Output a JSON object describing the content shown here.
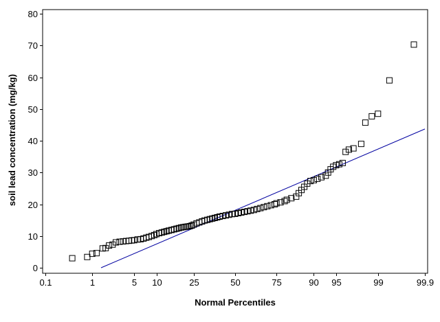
{
  "chart_data": {
    "type": "scatter",
    "xlabel": "Normal Percentiles",
    "ylabel": "soil lead concentration (mg/kg)",
    "x_scale": "normal-probability",
    "xlim": [
      0.1,
      99.9
    ],
    "ylim": [
      -1,
      81
    ],
    "x_ticks": [
      0.1,
      1,
      5,
      10,
      25,
      50,
      75,
      90,
      95,
      99,
      99.9
    ],
    "x_tick_labels": [
      "0.1",
      "1",
      "5",
      "10",
      "25",
      "50",
      "75",
      "90",
      "95",
      "99",
      "99.9"
    ],
    "y_ticks": [
      0,
      10,
      20,
      30,
      40,
      50,
      60,
      70,
      80
    ],
    "y_tick_labels": [
      "0",
      "10",
      "20",
      "30",
      "40",
      "50",
      "60",
      "70",
      "80"
    ],
    "grid": false,
    "legend": "none",
    "marker": "open-square",
    "marker_color": "#000000",
    "fit_line_color": "#0000a0",
    "fit_line": {
      "x": [
        1.45,
        99.9
      ],
      "y": [
        0,
        43.7
      ]
    },
    "series": [
      {
        "x": [
          0.4,
          0.8,
          1.0,
          1.2,
          1.55,
          1.75,
          2.0,
          2.3,
          2.6,
          3.0,
          3.4,
          3.8,
          4.2,
          4.6,
          5.0,
          5.6,
          6.2,
          6.8,
          7.4,
          8.0,
          8.7,
          9.4,
          10.0,
          10.8,
          11.6,
          12.4,
          13.2,
          14.0,
          15.0,
          16.0,
          17.0,
          18.0,
          19.0,
          20.0,
          21.0,
          22.0,
          23.0,
          24.0,
          25.0,
          26.5,
          28.0,
          29.5,
          31.0,
          32.5,
          34.0,
          35.5,
          37.0,
          38.5,
          40.0,
          42.0,
          44.0,
          46.0,
          48.0,
          50.0,
          52.0,
          54.0,
          56.0,
          58.0,
          60.0,
          62.0,
          64.0,
          66.0,
          68.0,
          70.0,
          72.0,
          74.0,
          75.0,
          77.0,
          79.0,
          80.0,
          82.0,
          84.0,
          85.0,
          86.0,
          87.0,
          88.0,
          89.0,
          90.0,
          91.0,
          92.0,
          93.0,
          93.5,
          94.0,
          94.5,
          95.0,
          95.5,
          96.0,
          96.4,
          96.8,
          97.3,
          98.0,
          98.3,
          98.7,
          99.0,
          99.4,
          99.82
        ],
        "y": [
          3.0,
          3.4,
          4.4,
          4.6,
          6.1,
          6.2,
          7.0,
          7.3,
          8.0,
          8.2,
          8.3,
          8.4,
          8.5,
          8.6,
          8.7,
          8.9,
          9.0,
          9.2,
          9.5,
          9.7,
          10.0,
          10.3,
          10.6,
          10.9,
          11.1,
          11.3,
          11.5,
          11.7,
          11.9,
          12.1,
          12.3,
          12.5,
          12.7,
          12.8,
          12.9,
          13.0,
          13.1,
          13.3,
          13.6,
          14.0,
          14.3,
          14.6,
          14.9,
          15.1,
          15.3,
          15.5,
          15.7,
          15.9,
          16.1,
          16.3,
          16.5,
          16.7,
          16.9,
          17.0,
          17.2,
          17.4,
          17.6,
          17.8,
          18.0,
          18.2,
          18.5,
          18.8,
          19.1,
          19.4,
          19.7,
          20.0,
          20.3,
          20.6,
          21.0,
          21.4,
          21.9,
          22.4,
          23.5,
          24.5,
          25.5,
          26.5,
          27.3,
          27.6,
          28.0,
          28.5,
          29.0,
          30.0,
          31.0,
          31.8,
          32.3,
          32.6,
          33.0,
          36.5,
          37.2,
          37.6,
          39.0,
          45.7,
          47.7,
          48.5,
          59.0,
          70.3
        ]
      }
    ]
  }
}
